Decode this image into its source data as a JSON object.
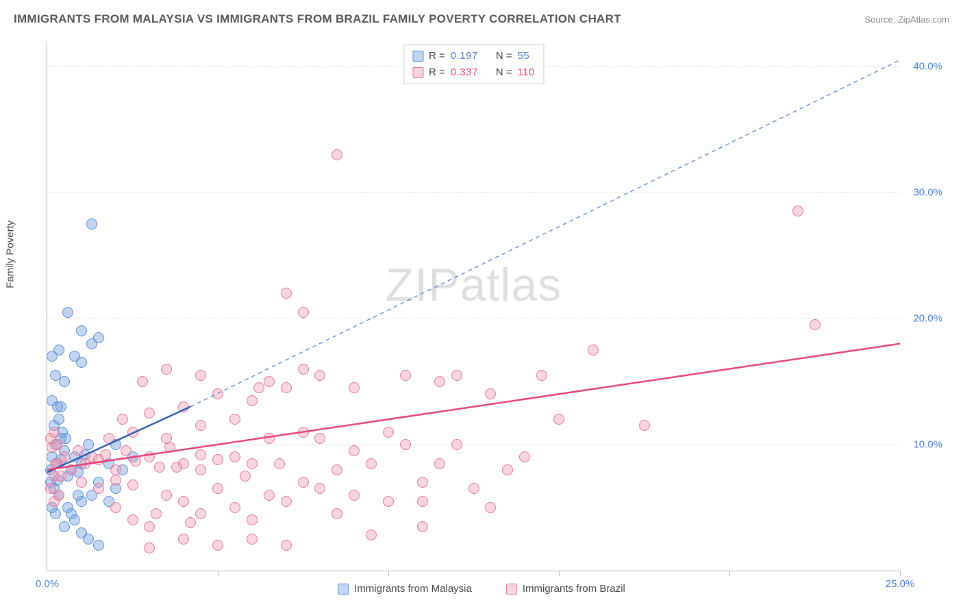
{
  "title": "IMMIGRANTS FROM MALAYSIA VS IMMIGRANTS FROM BRAZIL FAMILY POVERTY CORRELATION CHART",
  "source_label": "Source:",
  "source_name": "ZipAtlas.com",
  "ylabel": "Family Poverty",
  "watermark_a": "ZIP",
  "watermark_b": "atlas",
  "chart": {
    "type": "scatter",
    "xlim": [
      0,
      25
    ],
    "ylim": [
      0,
      42
    ],
    "yticks": [
      10,
      20,
      30,
      40
    ],
    "ytick_labels": [
      "10.0%",
      "20.0%",
      "30.0%",
      "40.0%"
    ],
    "xticks": [
      0,
      5,
      10,
      15,
      20,
      25
    ],
    "x_start_label": "0.0%",
    "x_end_label": "25.0%",
    "grid_color": "#dddddd",
    "axis_color": "#bbbbbb",
    "background_color": "#ffffff",
    "tick_label_color": "#4a7fd6",
    "point_radius": 8,
    "point_border_width": 1.2
  },
  "series": [
    {
      "name": "Immigrants from Malaysia",
      "fill_color": "rgba(120,165,225,0.45)",
      "stroke_color": "#5c8fd6",
      "r_value": "0.197",
      "n_value": "55",
      "regression": {
        "x1": 0,
        "y1": 7.8,
        "x2": 4.2,
        "y2": 13.0,
        "solid": true,
        "color": "#2e5db0",
        "width": 2.5
      },
      "extrapolation": {
        "x1": 4.2,
        "y1": 13.0,
        "x2": 25,
        "y2": 40.5,
        "color": "#5c8fd6",
        "width": 1.4,
        "dash": "6,5"
      },
      "points": [
        [
          0.1,
          8.0
        ],
        [
          0.15,
          9.0
        ],
        [
          0.2,
          11.5
        ],
        [
          0.1,
          7.0
        ],
        [
          0.3,
          8.5
        ],
        [
          0.25,
          10.0
        ],
        [
          0.35,
          12.0
        ],
        [
          0.4,
          8.8
        ],
        [
          0.5,
          9.5
        ],
        [
          0.6,
          7.5
        ],
        [
          0.2,
          6.5
        ],
        [
          0.3,
          7.2
        ],
        [
          0.45,
          11.0
        ],
        [
          0.55,
          10.5
        ],
        [
          0.7,
          8.0
        ],
        [
          0.8,
          9.0
        ],
        [
          0.9,
          7.8
        ],
        [
          1.0,
          8.5
        ],
        [
          1.1,
          9.2
        ],
        [
          1.2,
          10.0
        ],
        [
          0.4,
          13.0
        ],
        [
          0.5,
          15.0
        ],
        [
          0.8,
          17.0
        ],
        [
          1.0,
          16.5
        ],
        [
          1.3,
          18.0
        ],
        [
          1.5,
          18.5
        ],
        [
          1.0,
          19.0
        ],
        [
          0.6,
          20.5
        ],
        [
          1.3,
          27.5
        ],
        [
          0.6,
          5.0
        ],
        [
          0.8,
          4.0
        ],
        [
          1.0,
          3.0
        ],
        [
          1.2,
          2.5
        ],
        [
          1.5,
          2.0
        ],
        [
          1.0,
          5.5
        ],
        [
          1.3,
          6.0
        ],
        [
          1.5,
          7.0
        ],
        [
          1.8,
          5.5
        ],
        [
          2.0,
          6.5
        ],
        [
          2.2,
          8.0
        ],
        [
          2.5,
          9.0
        ],
        [
          1.8,
          8.5
        ],
        [
          2.0,
          10.0
        ],
        [
          0.15,
          5.0
        ],
        [
          0.25,
          4.5
        ],
        [
          0.35,
          6.0
        ],
        [
          0.5,
          3.5
        ],
        [
          0.7,
          4.5
        ],
        [
          0.9,
          6.0
        ],
        [
          0.15,
          13.5
        ],
        [
          0.25,
          15.5
        ],
        [
          0.35,
          17.5
        ],
        [
          0.15,
          17.0
        ],
        [
          0.3,
          13.0
        ],
        [
          0.4,
          10.5
        ]
      ]
    },
    {
      "name": "Immigrants from Brazil",
      "fill_color": "rgba(240,150,175,0.4)",
      "stroke_color": "#e57a9a",
      "r_value": "0.337",
      "n_value": "110",
      "regression": {
        "x1": 0,
        "y1": 8.0,
        "x2": 25,
        "y2": 18.0,
        "solid": true,
        "color": "#e7417a",
        "width": 2.5
      },
      "points": [
        [
          0.2,
          7.5
        ],
        [
          0.3,
          8.5
        ],
        [
          0.5,
          9.0
        ],
        [
          0.7,
          8.0
        ],
        [
          0.9,
          9.5
        ],
        [
          1.1,
          8.5
        ],
        [
          1.3,
          9.0
        ],
        [
          1.5,
          8.8
        ],
        [
          1.7,
          9.2
        ],
        [
          2.0,
          8.0
        ],
        [
          2.3,
          9.5
        ],
        [
          2.6,
          8.7
        ],
        [
          3.0,
          9.0
        ],
        [
          3.3,
          8.2
        ],
        [
          3.6,
          9.8
        ],
        [
          4.0,
          8.5
        ],
        [
          4.5,
          9.2
        ],
        [
          5.0,
          8.8
        ],
        [
          5.5,
          9.0
        ],
        [
          6.0,
          8.5
        ],
        [
          2.0,
          5.0
        ],
        [
          2.5,
          4.0
        ],
        [
          3.0,
          3.5
        ],
        [
          3.5,
          6.0
        ],
        [
          4.0,
          5.5
        ],
        [
          4.5,
          4.5
        ],
        [
          5.0,
          6.5
        ],
        [
          5.5,
          5.0
        ],
        [
          6.0,
          4.0
        ],
        [
          6.5,
          6.0
        ],
        [
          7.0,
          5.5
        ],
        [
          7.5,
          7.0
        ],
        [
          8.0,
          6.5
        ],
        [
          2.5,
          11.0
        ],
        [
          3.0,
          12.5
        ],
        [
          3.5,
          10.5
        ],
        [
          4.0,
          13.0
        ],
        [
          4.5,
          11.5
        ],
        [
          5.0,
          14.0
        ],
        [
          5.5,
          12.0
        ],
        [
          6.0,
          13.5
        ],
        [
          6.5,
          15.0
        ],
        [
          7.0,
          14.5
        ],
        [
          7.5,
          16.0
        ],
        [
          8.0,
          15.5
        ],
        [
          3.5,
          16.0
        ],
        [
          4.5,
          15.5
        ],
        [
          2.8,
          15.0
        ],
        [
          5.0,
          2.0
        ],
        [
          6.0,
          2.5
        ],
        [
          7.0,
          2.0
        ],
        [
          4.0,
          2.5
        ],
        [
          3.0,
          1.8
        ],
        [
          8.5,
          8.0
        ],
        [
          9.0,
          9.5
        ],
        [
          9.5,
          8.5
        ],
        [
          10.0,
          11.0
        ],
        [
          10.5,
          15.5
        ],
        [
          11.0,
          7.0
        ],
        [
          11.5,
          8.5
        ],
        [
          12.0,
          10.0
        ],
        [
          13.0,
          14.0
        ],
        [
          13.5,
          8.0
        ],
        [
          14.0,
          9.0
        ],
        [
          15.0,
          12.0
        ],
        [
          16.0,
          17.5
        ],
        [
          17.5,
          11.5
        ],
        [
          10.0,
          5.5
        ],
        [
          11.0,
          3.5
        ],
        [
          12.5,
          6.5
        ],
        [
          9.0,
          6.0
        ],
        [
          13.0,
          5.0
        ],
        [
          7.0,
          22.0
        ],
        [
          7.5,
          20.5
        ],
        [
          8.5,
          33.0
        ],
        [
          22.0,
          28.5
        ],
        [
          22.5,
          19.5
        ],
        [
          0.1,
          10.5
        ],
        [
          0.2,
          11.0
        ],
        [
          0.3,
          10.0
        ],
        [
          0.15,
          9.8
        ],
        [
          0.25,
          8.5
        ],
        [
          0.4,
          7.5
        ],
        [
          0.1,
          6.5
        ],
        [
          0.2,
          5.5
        ],
        [
          0.35,
          6.0
        ],
        [
          8.0,
          10.5
        ],
        [
          9.0,
          14.5
        ],
        [
          10.5,
          10.0
        ],
        [
          6.5,
          10.5
        ],
        [
          7.5,
          11.0
        ],
        [
          11.5,
          15.0
        ],
        [
          12.0,
          15.5
        ],
        [
          14.5,
          15.5
        ],
        [
          4.5,
          8.0
        ],
        [
          5.8,
          7.5
        ],
        [
          6.8,
          8.5
        ],
        [
          3.8,
          8.2
        ],
        [
          1.0,
          7.0
        ],
        [
          1.5,
          6.5
        ],
        [
          2.0,
          7.2
        ],
        [
          2.5,
          6.8
        ],
        [
          1.8,
          10.5
        ],
        [
          2.2,
          12.0
        ],
        [
          3.2,
          4.5
        ],
        [
          4.2,
          3.8
        ],
        [
          8.5,
          4.5
        ],
        [
          9.5,
          2.8
        ],
        [
          11.0,
          5.5
        ],
        [
          6.2,
          14.5
        ]
      ]
    }
  ],
  "legend_top": {
    "r_label": "R  =",
    "n_label": "N  ="
  },
  "bottom_legend": [
    {
      "label": "Immigrants from Malaysia",
      "fill": "rgba(120,165,225,0.45)",
      "stroke": "#5c8fd6"
    },
    {
      "label": "Immigrants from Brazil",
      "fill": "rgba(240,150,175,0.4)",
      "stroke": "#e57a9a"
    }
  ]
}
